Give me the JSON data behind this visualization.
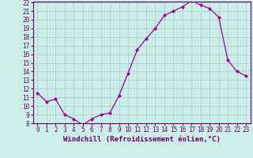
{
  "x": [
    0,
    1,
    2,
    3,
    4,
    5,
    6,
    7,
    8,
    9,
    10,
    11,
    12,
    13,
    14,
    15,
    16,
    17,
    18,
    19,
    20,
    21,
    22,
    23
  ],
  "y": [
    11.5,
    10.5,
    10.8,
    9.0,
    8.5,
    7.8,
    8.5,
    9.0,
    9.2,
    11.2,
    13.8,
    16.5,
    17.8,
    19.0,
    20.5,
    21.0,
    21.5,
    22.2,
    21.7,
    21.3,
    20.3,
    15.3,
    14.0,
    13.5
  ],
  "line_color": "#990099",
  "marker": "D",
  "marker_size": 2,
  "bg_color": "#cceee8",
  "grid_color": "#aacccc",
  "xlabel": "Windchill (Refroidissement éolien,°C)",
  "ylim": [
    8,
    22
  ],
  "xlim": [
    -0.5,
    23.5
  ],
  "yticks": [
    8,
    9,
    10,
    11,
    12,
    13,
    14,
    15,
    16,
    17,
    18,
    19,
    20,
    21,
    22
  ],
  "xticks": [
    0,
    1,
    2,
    3,
    4,
    5,
    6,
    7,
    8,
    9,
    10,
    11,
    12,
    13,
    14,
    15,
    16,
    17,
    18,
    19,
    20,
    21,
    22,
    23
  ],
  "tick_label_size": 5.5,
  "xlabel_size": 6.5,
  "axis_color": "#660066",
  "spine_color": "#660066"
}
